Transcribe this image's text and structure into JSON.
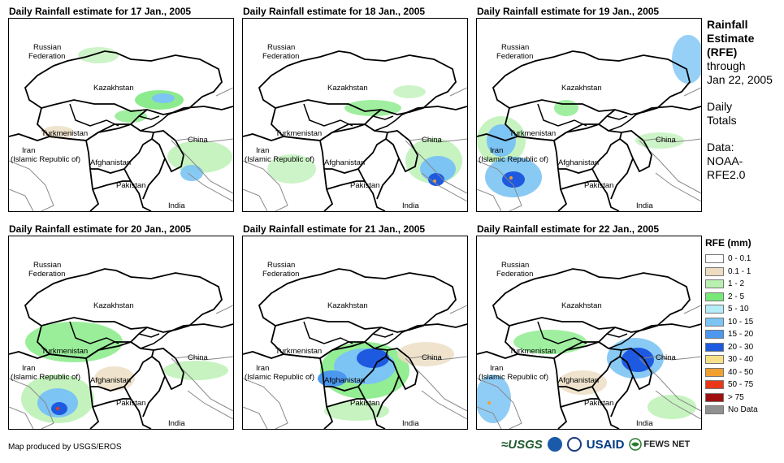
{
  "panels": [
    {
      "title": "Daily Rainfall estimate for 17 Jan., 2005"
    },
    {
      "title": "Daily Rainfall estimate for 18 Jan., 2005"
    },
    {
      "title": "Daily Rainfall estimate for 19 Jan., 2005"
    },
    {
      "title": "Daily Rainfall estimate for 20 Jan., 2005"
    },
    {
      "title": "Daily Rainfall estimate for 21 Jan., 2005"
    },
    {
      "title": "Daily Rainfall estimate for 22 Jan., 2005"
    }
  ],
  "map_labels": {
    "russia_1": "Russian",
    "russia_2": "Federation",
    "kazakhstan": "Kazakhstan",
    "turkmenistan": "Turkmenistan",
    "iran_1": "Iran",
    "iran_2": "(Islamic Republic of)",
    "afghanistan": "Afghanistan",
    "pakistan": "Pakistan",
    "china": "China",
    "india": "India"
  },
  "side_info": {
    "title_1": "Rainfall",
    "title_2": "Estimate",
    "title_3": "(RFE)",
    "through": "through",
    "date": "Jan 22, 2005",
    "daily": "Daily",
    "totals": "Totals",
    "data_label": "Data:",
    "source_1": "NOAA-",
    "source_2": "RFE2.0"
  },
  "legend": {
    "title": "RFE (mm)",
    "items": [
      {
        "label": "0 - 0.1",
        "color": "#ffffff"
      },
      {
        "label": "0.1 - 1",
        "color": "#ecdcc0"
      },
      {
        "label": "1 - 2",
        "color": "#b8f0b0"
      },
      {
        "label": "2 - 5",
        "color": "#78e878"
      },
      {
        "label": "5 - 10",
        "color": "#b4ecf8"
      },
      {
        "label": "10 - 15",
        "color": "#7cc4f4"
      },
      {
        "label": "15 - 20",
        "color": "#4c98f0"
      },
      {
        "label": "20 - 30",
        "color": "#1e5ae0"
      },
      {
        "label": "30 - 40",
        "color": "#f8e088"
      },
      {
        "label": "40 - 50",
        "color": "#f0a030"
      },
      {
        "label": "50 - 75",
        "color": "#e83818"
      },
      {
        "label": "> 75",
        "color": "#a01010"
      },
      {
        "label": "No Data",
        "color": "#909090"
      }
    ]
  },
  "footer": {
    "credit": "Map produced by USGS/EROS",
    "logo_usgs": "≈USGS",
    "logo_usaid": "USAID",
    "logo_fews": "FEWS NET"
  }
}
